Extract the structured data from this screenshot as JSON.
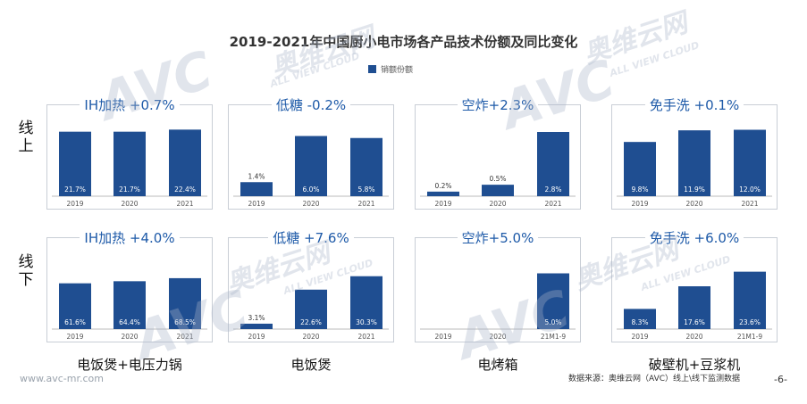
{
  "title": "2019-2021年中国厨小电市场各产品技术份额及同比变化",
  "legend_label": "销额份额",
  "row_labels": {
    "online": "线上",
    "offline": "线下"
  },
  "categories": [
    "电饭煲+电压力锅",
    "电饭煲",
    "电烤箱",
    "破壁机+豆浆机"
  ],
  "watermark": {
    "logo": "AVC",
    "cn": "奥维云网",
    "en": "ALL VIEW CLOUD"
  },
  "site": "www.avc-mr.com",
  "source": "数据来源：奥维云网（AVC）线上\\线下监测数据",
  "page_number": "-6-",
  "colors": {
    "bar": "#1f4e91",
    "title_text": "#1e5aa8",
    "frame": "#c9ced6"
  },
  "chart_data": [
    {
      "type": "bar",
      "title": "IH加热 +0.7%",
      "row": "线上",
      "product": "电饭煲+电压力锅",
      "categories": [
        "2019",
        "2020",
        "2021"
      ],
      "values": [
        21.7,
        21.7,
        22.4
      ],
      "labels": [
        "21.7%",
        "21.7%",
        "22.4%"
      ],
      "ylim": [
        0,
        27
      ]
    },
    {
      "type": "bar",
      "title": "低糖 -0.2%",
      "row": "线上",
      "product": "电饭煲",
      "categories": [
        "2019",
        "2020",
        "2021"
      ],
      "values": [
        1.4,
        6.0,
        5.8
      ],
      "labels": [
        "1.4%",
        "6.0%",
        "5.8%"
      ],
      "ylim": [
        0,
        8
      ]
    },
    {
      "type": "bar",
      "title": "空炸+2.3%",
      "row": "线上",
      "product": "电烤箱",
      "categories": [
        "2019",
        "2020",
        "2021"
      ],
      "values": [
        0.2,
        0.5,
        2.8
      ],
      "labels": [
        "0.2%",
        "0.5%",
        "2.8%"
      ],
      "ylim": [
        0,
        3.5
      ]
    },
    {
      "type": "bar",
      "title": "免手洗 +0.1%",
      "row": "线上",
      "product": "破壁机+豆浆机",
      "categories": [
        "2019",
        "2020",
        "2021"
      ],
      "values": [
        9.8,
        11.9,
        12.0
      ],
      "labels": [
        "9.8%",
        "11.9%",
        "12.0%"
      ],
      "ylim": [
        0,
        14.5
      ]
    },
    {
      "type": "bar",
      "title": "IH加热 +4.0%",
      "row": "线下",
      "product": "电饭煲+电压力锅",
      "categories": [
        "2019",
        "2020",
        "2021"
      ],
      "values": [
        61.6,
        64.4,
        68.5
      ],
      "labels": [
        "61.6%",
        "64.4%",
        "68.5%"
      ],
      "ylim": [
        0,
        108
      ]
    },
    {
      "type": "bar",
      "title": "低糖 +7.6%",
      "row": "线下",
      "product": "电饭煲",
      "categories": [
        "2019",
        "2020",
        "2021"
      ],
      "values": [
        3.1,
        22.6,
        30.3
      ],
      "labels": [
        "3.1%",
        "22.6%",
        "30.3%"
      ],
      "ylim": [
        0,
        46
      ]
    },
    {
      "type": "bar",
      "title": "空炸+5.0%",
      "row": "线下",
      "product": "电烤箱",
      "categories": [
        "2019",
        "2020",
        "21M1-9"
      ],
      "values": [
        0,
        0,
        5.0
      ],
      "labels": [
        "",
        "",
        "5.0%"
      ],
      "ylim": [
        0,
        7.2
      ]
    },
    {
      "type": "bar",
      "title": "免手洗 +6.0%",
      "row": "线下",
      "product": "破壁机+豆浆机",
      "categories": [
        "2019",
        "2020",
        "21M1-9"
      ],
      "values": [
        8.3,
        17.6,
        23.6
      ],
      "labels": [
        "8.3%",
        "17.6%",
        "23.6%"
      ],
      "ylim": [
        0,
        33
      ]
    }
  ]
}
